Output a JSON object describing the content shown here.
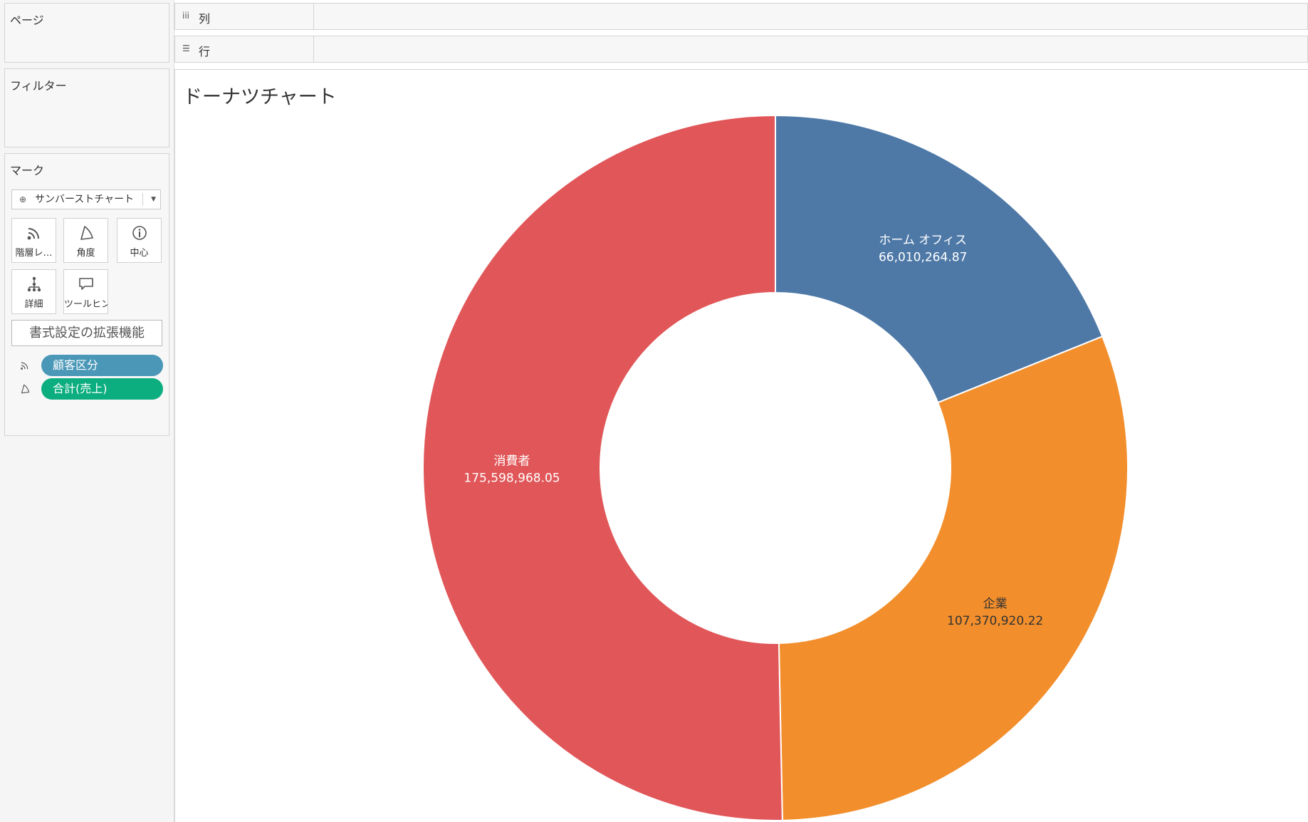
{
  "cards": {
    "pages_title": "ページ",
    "filters_title": "フィルター",
    "marks_title": "マーク"
  },
  "marks": {
    "mark_type": "サンバーストチャート",
    "buttons": {
      "hierarchy": "階層レ…",
      "angle": "角度",
      "center": "中心",
      "detail": "詳細",
      "tooltip": "ツールヒント"
    },
    "format_extension": "書式設定の拡張機能",
    "pills": [
      {
        "label": "顧客区分",
        "color": "#4a97b8",
        "icon": "hierarchy-icon"
      },
      {
        "label": "合計(売上)",
        "color": "#0cae7f",
        "icon": "angle-icon"
      }
    ]
  },
  "shelves": {
    "columns_label": "列",
    "columns_icon": "columns-icon",
    "rows_label": "行",
    "rows_icon": "rows-icon"
  },
  "view": {
    "title": "ドーナツチャート"
  },
  "chart_data": {
    "type": "pie",
    "variant": "donut",
    "title": "ドーナツチャート",
    "categories": [
      "ホーム オフィス",
      "企業",
      "消費者"
    ],
    "values": [
      66010264.87,
      107370920.22,
      175598968.05
    ],
    "value_labels": [
      "66,010,264.87",
      "107,370,920.22",
      "175,598,968.05"
    ],
    "colors": [
      "#4e79a7",
      "#f28e2b",
      "#e15759"
    ],
    "label_text_colors": [
      "#ffffff",
      "#333333",
      "#ffffff"
    ],
    "start": "12 o'clock",
    "direction": "clockwise",
    "legend": "none",
    "slice_borders": "#ffffff"
  }
}
